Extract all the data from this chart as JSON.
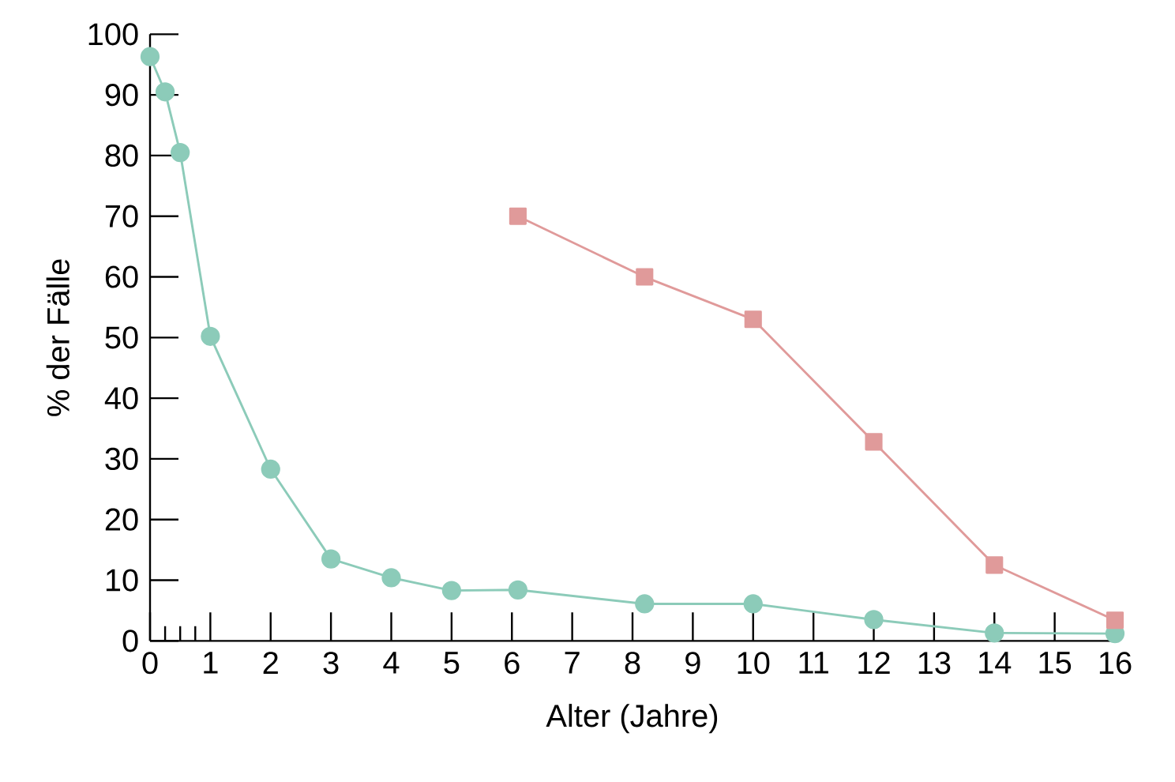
{
  "chart_data": {
    "type": "line",
    "xlabel": "Alter (Jahre)",
    "ylabel": "% der Fälle",
    "xlim": [
      0,
      16
    ],
    "ylim": [
      0,
      100
    ],
    "xticks": [
      0,
      {
        "value": 0.25,
        "label": null
      },
      {
        "value": 0.5,
        "label": null
      },
      {
        "value": 0.75,
        "label": null
      },
      1,
      2,
      3,
      4,
      5,
      6,
      7,
      8,
      9,
      10,
      11,
      12,
      13,
      14,
      15,
      16
    ],
    "yticks": [
      0,
      10,
      20,
      30,
      40,
      50,
      60,
      70,
      80,
      90,
      100
    ],
    "grid": false,
    "line_style": "solid",
    "series": [
      {
        "color": "#8ccbb9",
        "marker": "circle",
        "x": [
          0,
          0.25,
          0.5,
          1,
          2,
          3,
          4,
          5,
          6.1,
          8.2,
          10,
          12,
          14,
          16
        ],
        "values": [
          96.3,
          90.5,
          80.5,
          50.2,
          28.3,
          13.5,
          10.4,
          8.3,
          8.4,
          6.1,
          6.1,
          3.5,
          1.3,
          1.2
        ]
      },
      {
        "color": "#e09a9a",
        "marker": "square",
        "x": [
          6.1,
          8.2,
          10,
          12,
          14,
          16
        ],
        "values": [
          70,
          60,
          53,
          32.8,
          12.5,
          3.4
        ]
      }
    ]
  }
}
